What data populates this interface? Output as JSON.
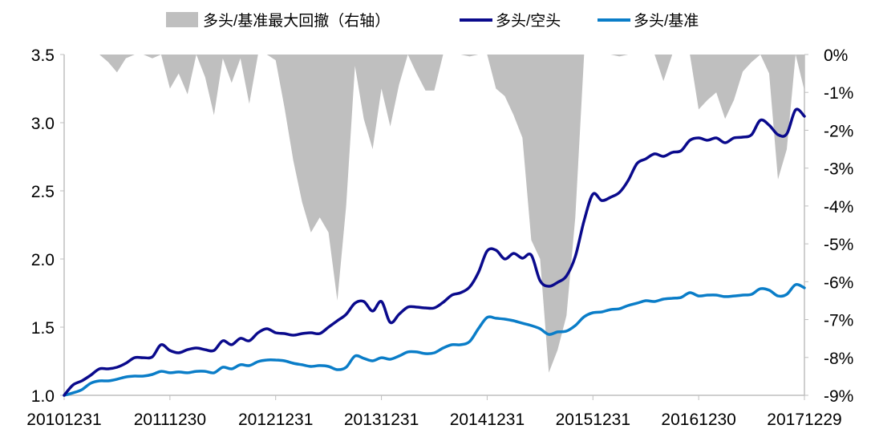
{
  "chart_data": {
    "type": "line",
    "x_labels": [
      "20101231",
      "20111230",
      "20121231",
      "20131231",
      "20141231",
      "20151231",
      "20161230",
      "20171229"
    ],
    "x_label_month_index": [
      0,
      12,
      24,
      36,
      48,
      60,
      72,
      84
    ],
    "left_axis": {
      "ylim": [
        1.0,
        3.5
      ],
      "ticks": [
        "1.0",
        "1.5",
        "2.0",
        "2.5",
        "3.0",
        "3.5"
      ]
    },
    "right_axis": {
      "ylim": [
        -9,
        0
      ],
      "ticks": [
        "0%",
        "-1%",
        "-2%",
        "-3%",
        "-4%",
        "-5%",
        "-6%",
        "-7%",
        "-8%",
        "-9%"
      ]
    },
    "legend_position": "top",
    "series": [
      {
        "name": "多头/基准最大回撤（右轴）",
        "type": "area",
        "axis": "right",
        "color": "#bfbfbf",
        "unit": "%",
        "values": [
          0,
          0,
          0,
          0,
          0,
          -0.2,
          -0.47,
          -0.1,
          0,
          0,
          -0.1,
          0,
          -0.9,
          -0.5,
          -1.05,
          0,
          -0.6,
          -1.6,
          -0.1,
          -0.75,
          -0.1,
          -1.3,
          0,
          0,
          -0.15,
          -1.4,
          -2.8,
          -3.9,
          -4.7,
          -4.3,
          -4.7,
          -6.5,
          -4.0,
          -0.3,
          -1.7,
          -2.5,
          -0.9,
          -1.9,
          -0.8,
          0,
          -0.5,
          -0.95,
          -0.95,
          0,
          0,
          0,
          -0.05,
          0,
          0,
          -0.9,
          -1.1,
          -1.6,
          -2.2,
          -4.9,
          -5.4,
          -8.4,
          -7.8,
          -6.9,
          -4.3,
          0,
          0,
          0,
          0,
          -0.05,
          0,
          0,
          0,
          0,
          -0.7,
          0,
          0,
          0,
          -1.45,
          -1.2,
          -1.0,
          -1.7,
          -1.2,
          -0.45,
          -0.2,
          0,
          -0.5,
          -3.3,
          -2.5,
          0,
          -0.95
        ]
      },
      {
        "name": "多头/空头",
        "type": "line",
        "axis": "left",
        "color": "#0a0a8c",
        "values": [
          1.0,
          1.076,
          1.106,
          1.147,
          1.194,
          1.194,
          1.206,
          1.235,
          1.276,
          1.276,
          1.282,
          1.371,
          1.329,
          1.312,
          1.335,
          1.347,
          1.335,
          1.329,
          1.4,
          1.371,
          1.418,
          1.4,
          1.459,
          1.488,
          1.459,
          1.453,
          1.441,
          1.453,
          1.459,
          1.453,
          1.5,
          1.547,
          1.594,
          1.676,
          1.688,
          1.618,
          1.688,
          1.535,
          1.594,
          1.647,
          1.647,
          1.641,
          1.641,
          1.682,
          1.735,
          1.753,
          1.794,
          1.9,
          2.059,
          2.065,
          2.0,
          2.041,
          2.006,
          2.029,
          1.841,
          1.8,
          1.829,
          1.876,
          2.018,
          2.282,
          2.476,
          2.429,
          2.453,
          2.488,
          2.576,
          2.7,
          2.735,
          2.771,
          2.753,
          2.782,
          2.794,
          2.871,
          2.888,
          2.871,
          2.888,
          2.853,
          2.888,
          2.894,
          2.912,
          3.018,
          2.982,
          2.912,
          2.918,
          3.094,
          3.047
        ]
      },
      {
        "name": "多头/基准",
        "type": "line",
        "axis": "left",
        "color": "#0a7dc8",
        "values": [
          1.0,
          1.018,
          1.041,
          1.088,
          1.106,
          1.106,
          1.118,
          1.135,
          1.141,
          1.141,
          1.153,
          1.176,
          1.165,
          1.171,
          1.165,
          1.176,
          1.176,
          1.165,
          1.206,
          1.194,
          1.224,
          1.218,
          1.247,
          1.259,
          1.259,
          1.253,
          1.235,
          1.224,
          1.212,
          1.218,
          1.212,
          1.188,
          1.206,
          1.288,
          1.271,
          1.253,
          1.276,
          1.265,
          1.288,
          1.318,
          1.318,
          1.306,
          1.312,
          1.347,
          1.371,
          1.371,
          1.394,
          1.488,
          1.571,
          1.565,
          1.559,
          1.547,
          1.529,
          1.512,
          1.488,
          1.447,
          1.465,
          1.471,
          1.512,
          1.576,
          1.606,
          1.612,
          1.629,
          1.635,
          1.659,
          1.676,
          1.694,
          1.688,
          1.706,
          1.712,
          1.718,
          1.753,
          1.729,
          1.735,
          1.735,
          1.724,
          1.729,
          1.735,
          1.741,
          1.782,
          1.771,
          1.729,
          1.741,
          1.812,
          1.788
        ]
      }
    ]
  }
}
